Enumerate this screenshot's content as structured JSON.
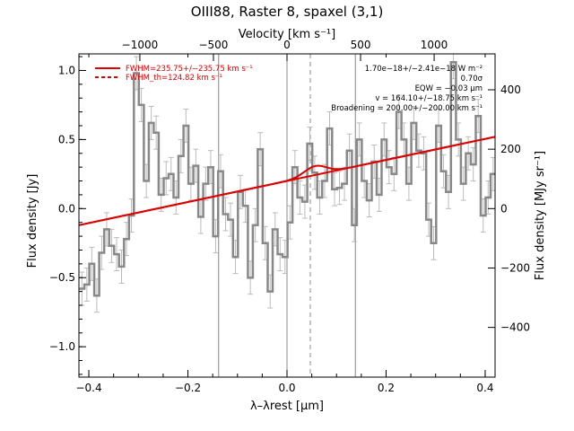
{
  "chart_data": {
    "type": "line",
    "title": "OIII88, Raster 8, spaxel (3,1)",
    "xlabel": "λ–λrest [μm]",
    "ylabel": "Flux density [Jy]",
    "ylabel_right": "Flux density [MJy sr⁻¹]",
    "xlabel_top": "Velocity [km s⁻¹]",
    "xlim": [
      -0.42,
      0.42
    ],
    "ylim": [
      -1.22,
      1.12
    ],
    "xticks": [
      -0.4,
      -0.2,
      0.0,
      0.2,
      0.4
    ],
    "xtick_labels": [
      "−0.4",
      "−0.2",
      "0.0",
      "0.2",
      "0.4"
    ],
    "yticks": [
      -1.0,
      -0.5,
      0.0,
      0.5,
      1.0
    ],
    "ytick_labels": [
      "−1.0",
      "−0.5",
      "0.0",
      "0.5",
      "1.0"
    ],
    "top_ticks": [
      -1000,
      -500,
      0,
      500,
      1000
    ],
    "top_tick_labels": [
      "−1000",
      "−500",
      "0",
      "500",
      "1000"
    ],
    "right_ticks": [
      -400,
      -200,
      0,
      200,
      400
    ],
    "right_tick_labels": [
      "−400",
      "−200",
      "0",
      "200",
      "400"
    ],
    "vertical_lines": {
      "solid": [
        -0.138,
        0.0,
        0.138
      ],
      "dashed": [
        0.047
      ]
    },
    "legend": {
      "position": "top-left",
      "entries": [
        {
          "label": "FWHM=235.75+/−235.75 km s⁻¹",
          "style": "solid",
          "color": "#dd0000"
        },
        {
          "label": "FWHM_th=124.82 km s⁻¹",
          "style": "dashed",
          "color": "#dd0000"
        }
      ]
    },
    "annotations": [
      "1.70e−18+/−2.41e−18 W m⁻²",
      "0.70σ",
      "EQW = −0.03 μm",
      "v = 164.10+/−18.75 km s⁻¹",
      "Broadening = 200.00+/−200.00 km s⁻¹"
    ],
    "series": [
      {
        "color": "#888888",
        "style": "step",
        "x": [
          -0.414,
          -0.404,
          -0.394,
          -0.384,
          -0.374,
          -0.364,
          -0.354,
          -0.344,
          -0.334,
          -0.324,
          -0.314,
          -0.304,
          -0.294,
          -0.284,
          -0.274,
          -0.264,
          -0.254,
          -0.244,
          -0.234,
          -0.224,
          -0.214,
          -0.204,
          -0.194,
          -0.184,
          -0.174,
          -0.164,
          -0.154,
          -0.144,
          -0.134,
          -0.124,
          -0.114,
          -0.104,
          -0.094,
          -0.084,
          -0.074,
          -0.064,
          -0.054,
          -0.044,
          -0.034,
          -0.024,
          -0.014,
          -0.004,
          0.006,
          0.016,
          0.026,
          0.036,
          0.046,
          0.056,
          0.066,
          0.076,
          0.086,
          0.096,
          0.106,
          0.116,
          0.126,
          0.136,
          0.146,
          0.156,
          0.166,
          0.176,
          0.186,
          0.196,
          0.206,
          0.216,
          0.226,
          0.236,
          0.246,
          0.256,
          0.266,
          0.276,
          0.286,
          0.296,
          0.306,
          0.316,
          0.326,
          0.336,
          0.346,
          0.356,
          0.366,
          0.376,
          0.386,
          0.396,
          0.406,
          0.416
        ],
        "y": [
          -0.58,
          -0.55,
          -0.4,
          -0.63,
          -0.32,
          -0.15,
          -0.27,
          -0.33,
          -0.42,
          -0.22,
          -0.05,
          0.98,
          0.75,
          0.2,
          0.62,
          0.55,
          0.1,
          0.22,
          0.25,
          0.08,
          0.38,
          0.6,
          0.18,
          0.31,
          -0.06,
          0.18,
          0.3,
          -0.2,
          0.27,
          -0.04,
          -0.08,
          -0.35,
          0.12,
          0.02,
          -0.5,
          -0.12,
          0.43,
          -0.25,
          -0.6,
          -0.15,
          -0.33,
          -0.35,
          -0.1,
          0.3,
          0.08,
          0.05,
          0.47,
          0.26,
          0.08,
          0.2,
          0.58,
          0.14,
          0.15,
          0.18,
          0.42,
          -0.12,
          0.5,
          0.2,
          0.06,
          0.34,
          0.1,
          0.5,
          0.3,
          0.25,
          0.7,
          0.5,
          0.18,
          0.62,
          0.42,
          0.4,
          -0.08,
          -0.25,
          0.6,
          0.27,
          0.12,
          1.06,
          0.5,
          0.18,
          0.4,
          0.32,
          0.67,
          -0.05,
          0.08,
          0.25
        ],
        "err": 0.12
      },
      {
        "color": "#dd0000",
        "style": "continuum",
        "x": [
          -0.42,
          0.42
        ],
        "y": [
          -0.12,
          0.52
        ]
      },
      {
        "color": "#dd0000",
        "style": "gaussian-fit",
        "amplitude": 0.065,
        "center": 0.057,
        "sigma": 0.022
      }
    ]
  }
}
